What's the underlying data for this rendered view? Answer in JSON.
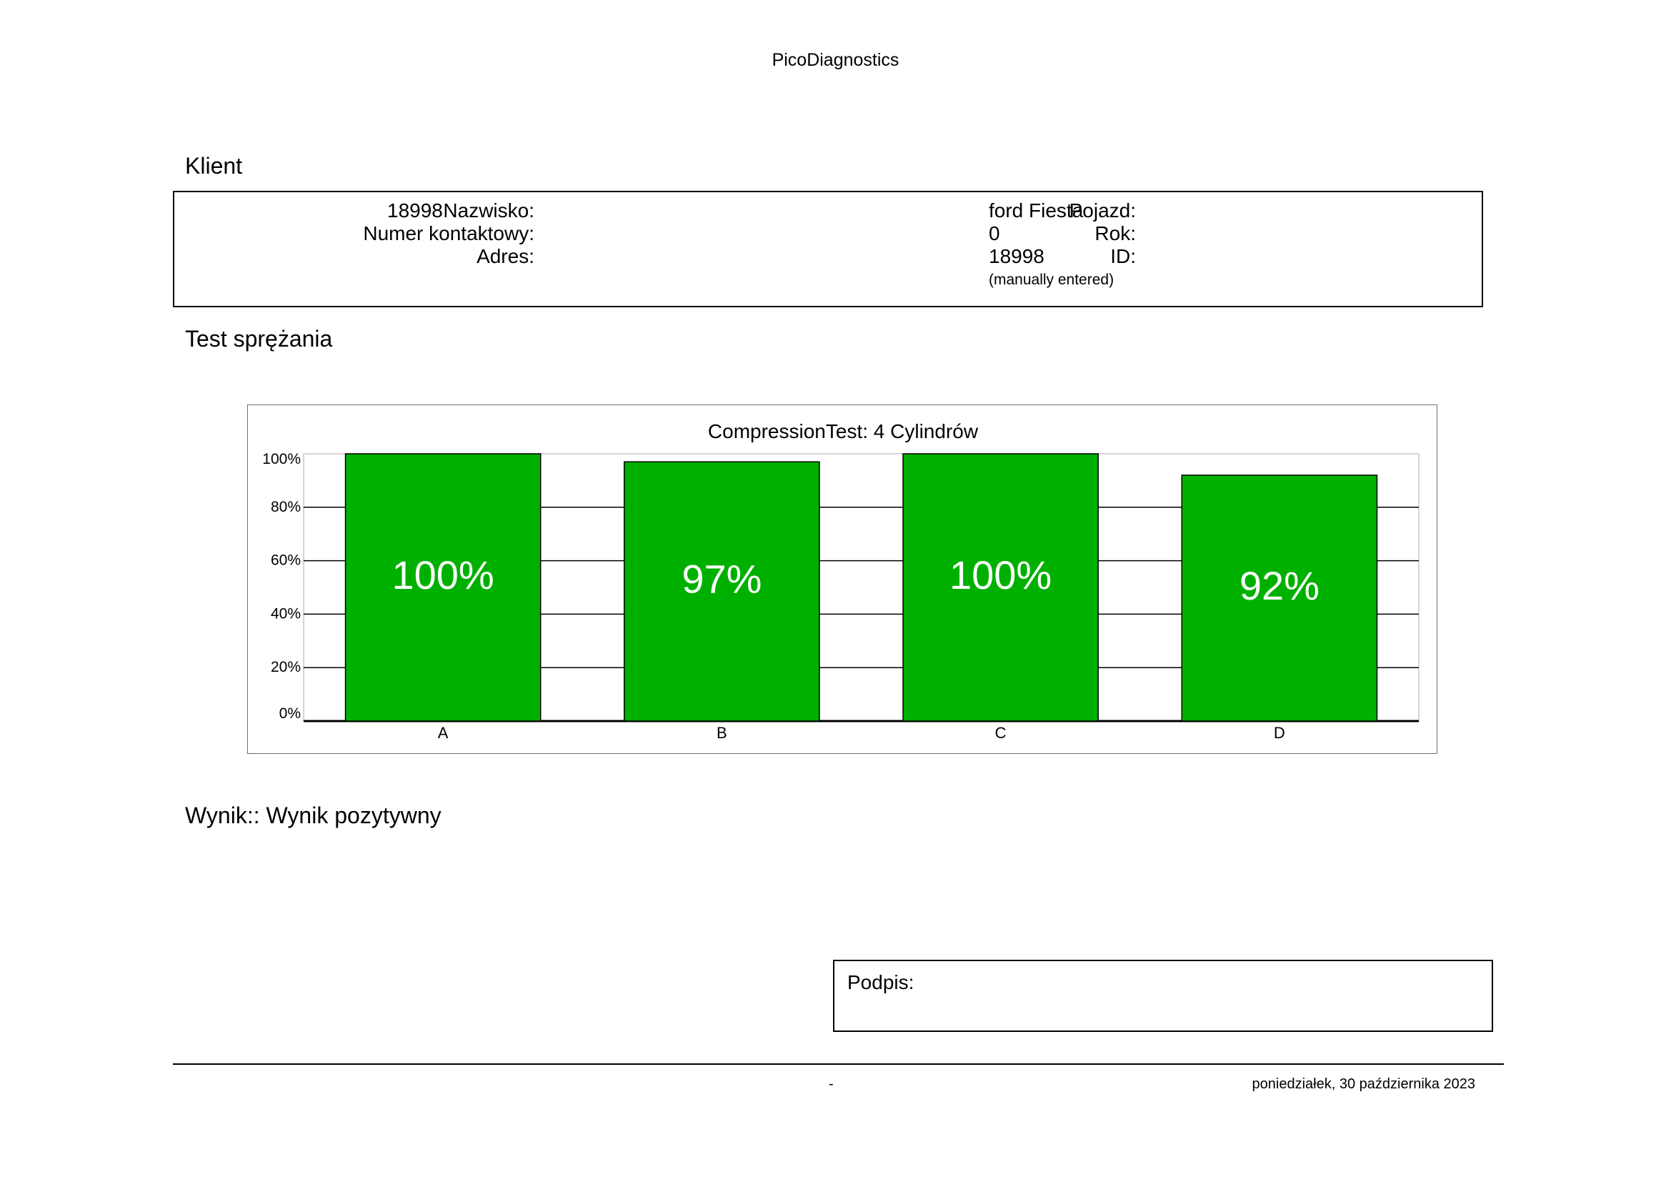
{
  "header": {
    "app_title": "PicoDiagnostics"
  },
  "client_section": {
    "title": "Klient",
    "left_fields": [
      {
        "label": "Nazwisko:",
        "value": "18998"
      },
      {
        "label": "Numer kontaktowy:",
        "value": ""
      },
      {
        "label": "Adres:",
        "value": ""
      }
    ],
    "right_fields": [
      {
        "label": "Pojazd:",
        "value": "ford Fiesta"
      },
      {
        "label": "Rok:",
        "value": "0"
      },
      {
        "label": "ID:",
        "value": "18998"
      }
    ],
    "id_note": "(manually entered)"
  },
  "test_section": {
    "title": "Test sprężania"
  },
  "chart_data": {
    "type": "bar",
    "title": "CompressionTest: 4 Cylindrów",
    "categories": [
      "A",
      "B",
      "C",
      "D"
    ],
    "values": [
      100,
      97,
      100,
      92
    ],
    "value_labels": [
      "100%",
      "97%",
      "100%",
      "92%"
    ],
    "ylim": [
      0,
      100
    ],
    "yticks": [
      0,
      20,
      40,
      60,
      80,
      100
    ],
    "ytick_labels": [
      "0%",
      "20%",
      "40%",
      "60%",
      "80%",
      "100%"
    ],
    "xlabel": "",
    "ylabel": "",
    "grid": true,
    "legend": "none",
    "bar_color": "#00b000"
  },
  "result": {
    "text": "Wynik:: Wynik pozytywny"
  },
  "signature": {
    "label": "Podpis:"
  },
  "footer": {
    "dash": "-",
    "date": "poniedziałek, 30 października 2023"
  }
}
